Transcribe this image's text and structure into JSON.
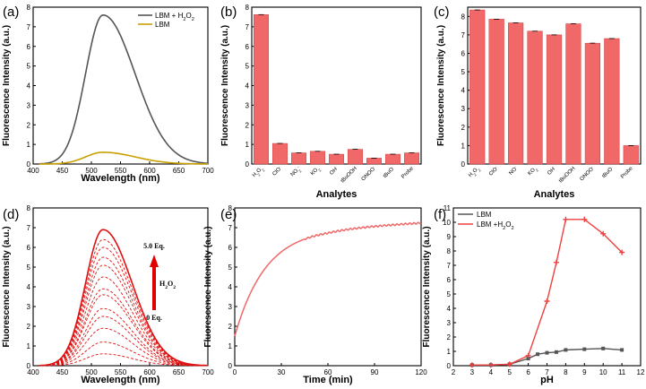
{
  "chart_data": [
    {
      "panel": "(a)",
      "type": "line",
      "xlabel": "Wavelength (nm)",
      "ylabel": "Fluorescence Intensity (a.u.)",
      "xlim": [
        400,
        700
      ],
      "ylim": [
        0,
        8
      ],
      "xticks": [
        "400",
        "450",
        "500",
        "550",
        "600",
        "650",
        "700"
      ],
      "yticks": [
        "0",
        "1",
        "2",
        "3",
        "4",
        "5",
        "6",
        "7",
        "8"
      ],
      "legend_position": "top-right",
      "series": [
        {
          "name": "LBM + H2O2",
          "label_main": "LBM + H",
          "label_sub": "2",
          "label_mid": "O",
          "label_sub2": "2",
          "color": "#555555",
          "peak_x": 520,
          "peak_y": 7.6,
          "sigma_left": 30,
          "sigma_right": 55
        },
        {
          "name": "LBM",
          "label_main": "LBM",
          "color": "#c8a000",
          "peak_x": 520,
          "peak_y": 0.6,
          "sigma_left": 30,
          "sigma_right": 55
        }
      ]
    },
    {
      "panel": "(b)",
      "type": "bar",
      "xlabel": "Analytes",
      "ylabel": "Fluorescence Intensity (a.u.)",
      "ylim": [
        0,
        8
      ],
      "yticks": [
        "0",
        "1",
        "2",
        "3",
        "4",
        "5",
        "6",
        "7",
        "8"
      ],
      "color": "#f06868",
      "categories": [
        "H2O2",
        "ClO-",
        "NO2-",
        "KO2",
        "OH·",
        "tBuOOH",
        "ONOO-",
        "tBuO·",
        "Probe"
      ],
      "category_labels": [
        {
          "main": "H",
          "sub": "2",
          "mid": "O",
          "sup": "",
          "sub2": "2"
        },
        {
          "main": "ClO",
          "sup": "-"
        },
        {
          "main": "NO",
          "sub": "2",
          "sup": "-"
        },
        {
          "main": "KO",
          "sub": "2"
        },
        {
          "main": "OH",
          "sup": "·"
        },
        {
          "main": "tBuOOH"
        },
        {
          "main": "ONOO",
          "sup": "-"
        },
        {
          "main": "tBuO",
          "sup": "·"
        },
        {
          "main": "Probe"
        }
      ],
      "values": [
        7.62,
        1.05,
        0.57,
        0.65,
        0.5,
        0.75,
        0.3,
        0.5,
        0.57
      ]
    },
    {
      "panel": "(c)",
      "type": "bar",
      "xlabel": "Analytes",
      "ylabel": "Fluorescence Intensity (a.u.)",
      "ylim": [
        0,
        8.5
      ],
      "yticks": [
        "0",
        "1",
        "2",
        "3",
        "4",
        "5",
        "6",
        "7",
        "8"
      ],
      "color": "#f06868",
      "categories": [
        "H2O2",
        "ClO-",
        "NO2-",
        "KO2",
        "OH·",
        "tBuOOH",
        "ONOO-",
        "tBuO·",
        "Probe"
      ],
      "category_labels": [
        {
          "main": "H",
          "sub": "2",
          "mid": "O",
          "sub2": "2"
        },
        {
          "main": "ClO",
          "sup": "-"
        },
        {
          "main": "NO",
          "sup": "-"
        },
        {
          "main": "KO",
          "sub": "2"
        },
        {
          "main": "OH",
          "sup": "·"
        },
        {
          "main": "tBuOOH"
        },
        {
          "main": "ONOO",
          "sup": "-"
        },
        {
          "main": "tBuO",
          "sup": "·"
        },
        {
          "main": "Probe"
        }
      ],
      "values": [
        8.35,
        7.85,
        7.65,
        7.2,
        7.0,
        7.6,
        6.55,
        6.8,
        1.0
      ]
    },
    {
      "panel": "(d)",
      "type": "line",
      "xlabel": "Wavelength (nm)",
      "ylabel": "Fluorescence Intensity (a.u.)",
      "xlim": [
        400,
        700
      ],
      "ylim": [
        0,
        8
      ],
      "xticks": [
        "400",
        "450",
        "500",
        "550",
        "600",
        "650",
        "700"
      ],
      "yticks": [
        "0",
        "1",
        "2",
        "3",
        "4",
        "5",
        "6",
        "7",
        "8"
      ],
      "color": "#e01010",
      "peak_x": 520,
      "peaks": [
        0.6,
        1.2,
        1.9,
        2.5,
        2.9,
        3.6,
        3.9,
        4.5,
        5.1,
        5.5,
        6.0,
        6.4,
        6.9
      ],
      "annotation_top": "5.0 Eq.",
      "annotation_mid": "H",
      "annotation_mid_sub": "2",
      "annotation_mid_rest": "O",
      "annotation_mid_sub2": "2",
      "annotation_bottom": "0 Eq."
    },
    {
      "panel": "(e)",
      "type": "line",
      "xlabel": "Time (min)",
      "ylabel": "Fluorescence Intensity (a.u.)",
      "xlim": [
        0,
        120
      ],
      "ylim": [
        0,
        8
      ],
      "xticks": [
        "0",
        "30",
        "60",
        "90",
        "120"
      ],
      "yticks": [
        "0",
        "1",
        "2",
        "3",
        "4",
        "5",
        "6",
        "7",
        "8"
      ],
      "color": "#f06868",
      "model": {
        "start": 1.5,
        "plateau": 7.0,
        "rate": 0.05,
        "late_rise": 0.25
      }
    },
    {
      "panel": "(f)",
      "type": "line",
      "xlabel": "pH",
      "ylabel": "Fluorescence Intensity (a.u.)",
      "xlim": [
        2,
        12
      ],
      "ylim": [
        0,
        11
      ],
      "xticks": [
        "2",
        "3",
        "4",
        "5",
        "6",
        "7",
        "8",
        "9",
        "10",
        "11",
        "12"
      ],
      "yticks": [
        "0",
        "1",
        "2",
        "3",
        "4",
        "5",
        "6",
        "7",
        "8",
        "9",
        "10",
        "11"
      ],
      "legend_position": "top-left",
      "series": [
        {
          "name": "LBM",
          "label_main": "LBM",
          "color": "#555555",
          "x": [
            3,
            4,
            5,
            6,
            6.5,
            7,
            7.5,
            8,
            9,
            10,
            11
          ],
          "y": [
            0.05,
            0.05,
            0.1,
            0.5,
            0.8,
            0.9,
            0.95,
            1.1,
            1.15,
            1.2,
            1.1
          ]
        },
        {
          "name": "LBM + H2O2",
          "label_main": "LBM +H",
          "label_sub": "2",
          "label_mid": "O",
          "label_sub2": "2",
          "color": "#f04040",
          "x": [
            3,
            4,
            5,
            6,
            7,
            7.5,
            8,
            9,
            10,
            11
          ],
          "y": [
            0.05,
            0.05,
            0.1,
            0.7,
            4.5,
            7.2,
            10.2,
            10.2,
            9.2,
            7.9
          ]
        }
      ]
    }
  ]
}
